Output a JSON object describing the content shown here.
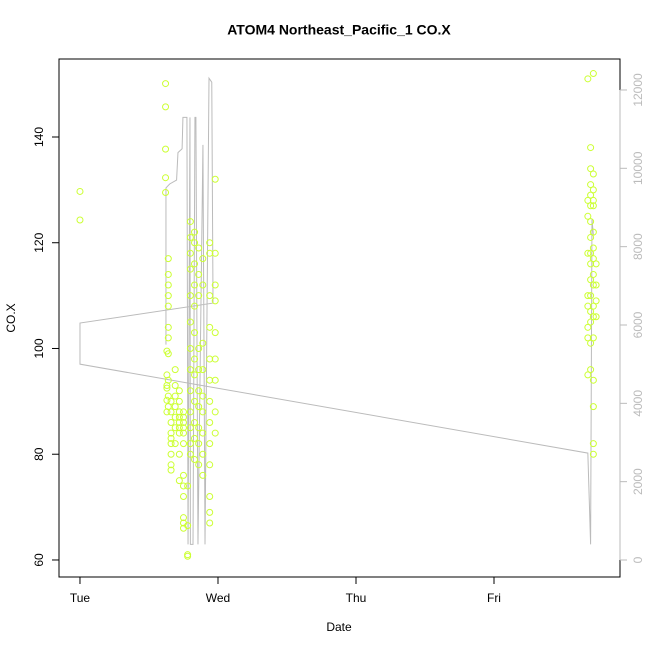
{
  "chart_data": {
    "type": "scatter",
    "title": "ATOM4 Northeast_Pacific_1 CO.X",
    "x_label": "Date",
    "y_label": "CO.X",
    "color": "#ccff33",
    "x": [
      0,
      0,
      0.62,
      0.62,
      0.62,
      0.62,
      0.62,
      0.63,
      0.63,
      0.63,
      0.63,
      0.63,
      0.63,
      0.64,
      0.64,
      0.64,
      0.64,
      0.64,
      0.64,
      0.64,
      0.64,
      0.64,
      0.64,
      0.64,
      0.66,
      0.66,
      0.66,
      0.66,
      0.66,
      0.66,
      0.66,
      0.66,
      0.66,
      0.69,
      0.69,
      0.69,
      0.69,
      0.69,
      0.69,
      0.69,
      0.72,
      0.72,
      0.72,
      0.72,
      0.72,
      0.72,
      0.72,
      0.72,
      0.72,
      0.75,
      0.75,
      0.75,
      0.75,
      0.75,
      0.75,
      0.75,
      0.75,
      0.75,
      0.75,
      0.75,
      0.75,
      0.78,
      0.78,
      0.78,
      0.78,
      0.8,
      0.8,
      0.8,
      0.8,
      0.8,
      0.8,
      0.8,
      0.8,
      0.8,
      0.8,
      0.8,
      0.8,
      0.8,
      0.83,
      0.83,
      0.83,
      0.83,
      0.83,
      0.83,
      0.83,
      0.83,
      0.83,
      0.83,
      0.83,
      0.83,
      0.86,
      0.86,
      0.86,
      0.86,
      0.86,
      0.86,
      0.86,
      0.86,
      0.86,
      0.86,
      0.89,
      0.89,
      0.89,
      0.89,
      0.89,
      0.89,
      0.89,
      0.89,
      0.89,
      0.94,
      0.94,
      0.94,
      0.94,
      0.94,
      0.94,
      0.94,
      0.94,
      0.94,
      0.94,
      0.94,
      0.94,
      0.94,
      0.98,
      0.98,
      0.98,
      0.98,
      0.98,
      0.98,
      0.98,
      0.98,
      0.98,
      3.68,
      3.68,
      3.68,
      3.68,
      3.68,
      3.68,
      3.68,
      3.68,
      3.68,
      3.7,
      3.7,
      3.7,
      3.7,
      3.7,
      3.7,
      3.7,
      3.7,
      3.7,
      3.7,
      3.7,
      3.7,
      3.7,
      3.7,
      3.7,
      3.72,
      3.72,
      3.72,
      3.72,
      3.72,
      3.72,
      3.72,
      3.72,
      3.72,
      3.72,
      3.72,
      3.72,
      3.72,
      3.72,
      3.72,
      3.72,
      3.72,
      3.74,
      3.74,
      3.74,
      3.74
    ],
    "values": [
      129.7,
      124.3,
      150.1,
      145.7,
      137.7,
      132.3,
      129.5,
      99.5,
      95,
      93,
      92.5,
      90.2,
      88,
      117,
      114,
      112,
      110,
      108,
      104,
      102,
      99,
      94,
      91,
      89,
      90,
      88,
      86,
      84,
      83,
      82,
      80,
      78,
      77,
      96,
      93,
      91,
      89,
      87,
      85,
      82,
      92,
      90,
      88,
      87,
      86,
      85,
      84,
      80,
      75,
      88,
      87,
      86,
      85,
      84,
      82,
      76,
      74,
      72,
      68,
      67,
      66,
      74,
      61,
      60.7,
      66.5,
      124,
      121,
      118,
      115,
      110,
      105,
      100,
      96,
      92,
      88,
      85,
      82,
      80,
      122,
      120,
      116,
      112,
      108,
      103,
      98,
      95,
      90,
      86,
      83,
      79,
      119,
      114,
      110,
      100,
      96,
      92,
      89,
      85,
      82,
      78,
      117,
      112,
      101,
      96,
      91,
      88,
      84,
      80,
      76,
      120,
      118,
      110,
      104,
      98,
      94,
      90,
      86,
      82,
      78,
      72,
      69,
      67,
      132,
      118,
      112,
      109,
      103,
      98,
      94,
      88,
      84,
      151,
      128,
      125,
      118,
      110,
      108,
      104,
      102,
      95,
      138,
      134,
      131,
      129,
      127,
      124,
      121,
      118,
      116,
      113,
      110,
      107,
      105,
      101,
      96,
      152,
      133,
      130,
      128,
      127,
      122,
      119,
      117,
      114,
      112,
      108,
      106,
      102,
      94,
      89,
      82,
      80,
      116,
      112,
      109,
      106
    ],
    "line": {
      "color": "#bbbbbb",
      "axis": "y2",
      "x": [
        0.623,
        0.623,
        0.65,
        0.7,
        0.71,
        0.74,
        0.746,
        0.775,
        0.783,
        0.797,
        0.8,
        0.819,
        0.833,
        0.84,
        0.855,
        0.891,
        0.906,
        0.935,
        0.955,
        0.964,
        0,
        0,
        3.68,
        3.7,
        3.71,
        3.72
      ],
      "values": [
        5500,
        9500,
        9600,
        9700,
        10400,
        10500,
        11300,
        11300,
        400,
        11300,
        400,
        400,
        11300,
        11300,
        400,
        10600,
        400,
        12300,
        12200,
        6560,
        6050,
        5000,
        2730,
        400,
        8700,
        8300
      ]
    },
    "xlim": [
      -0.152,
      3.913
    ],
    "xticks": [
      {
        "value": 0,
        "label": "Tue"
      },
      {
        "value": 1,
        "label": "Wed"
      },
      {
        "value": 2,
        "label": "Thu"
      },
      {
        "value": 3,
        "label": "Fri"
      }
    ],
    "ylim": [
      56.78,
      154.75
    ],
    "yticks": [
      60,
      80,
      100,
      120,
      140
    ],
    "y2lim": [
      -434,
      12791
    ],
    "y2ticks": [
      0,
      2000,
      4000,
      6000,
      8000,
      10000,
      12000
    ]
  }
}
